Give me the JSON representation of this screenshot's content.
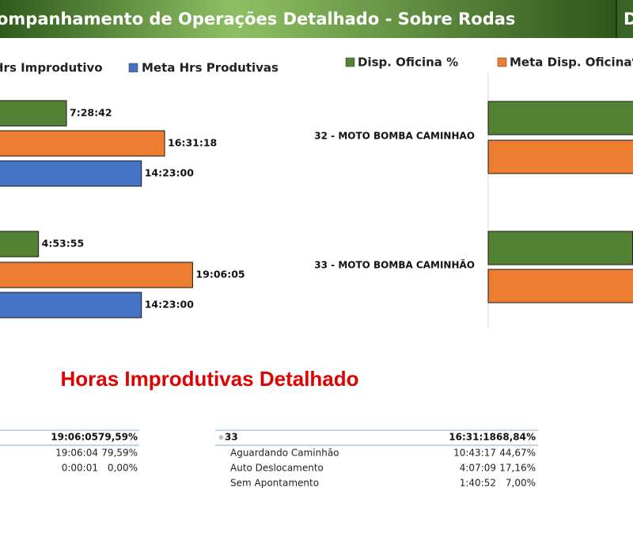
{
  "header": {
    "title": "ompanhamento de Operações Detalhado - Sobre Rodas",
    "right_title": "D"
  },
  "chart_data": [
    {
      "type": "bar",
      "orientation": "horizontal",
      "categories": [
        null,
        null
      ],
      "series": [
        {
          "name": null,
          "color": "#548235",
          "values": [
            26922,
            17635
          ],
          "value_labels": [
            "7:28:42",
            "4:53:55"
          ]
        },
        {
          "name": "Hrs Improdutivo",
          "color": "#ed7d31",
          "values": [
            59478,
            68765
          ],
          "value_labels": [
            "16:31:18",
            "19:06:05"
          ]
        },
        {
          "name": "Meta Hrs Produtivas",
          "color": "#4472c4",
          "values": [
            51780,
            51780
          ],
          "value_labels": [
            "14:23:00",
            "14:23:00"
          ]
        }
      ]
    },
    {
      "type": "bar",
      "orientation": "horizontal",
      "categories": [
        "32 - MOTO BOMBA CAMINHAO",
        "33 - MOTO BOMBA CAMINHÃO"
      ],
      "series": [
        {
          "name": "Disp. Oficina %",
          "color": "#548235",
          "values": [
            100,
            83
          ]
        },
        {
          "name": "Meta Disp. Oficina%",
          "color": "#ed7d31",
          "values": [
            90,
            90
          ]
        }
      ]
    }
  ],
  "section_title": "Horas Improdutivas Detalhado",
  "tables": [
    {
      "rows": [
        [
          "19:06:05",
          "79,59%"
        ],
        [
          "19:06:04",
          "79,59%"
        ],
        [
          "0:00:01",
          "0,00%"
        ]
      ]
    },
    {
      "rows": [
        [
          "33",
          "16:31:18",
          "68,84%"
        ],
        [
          "Aguardando Caminhão",
          "10:43:17",
          "44,67%"
        ],
        [
          "Auto Deslocamento",
          "4:07:09",
          "17,16%"
        ],
        [
          "Sem Apontamento",
          "1:40:52",
          "7,00%"
        ]
      ]
    }
  ]
}
